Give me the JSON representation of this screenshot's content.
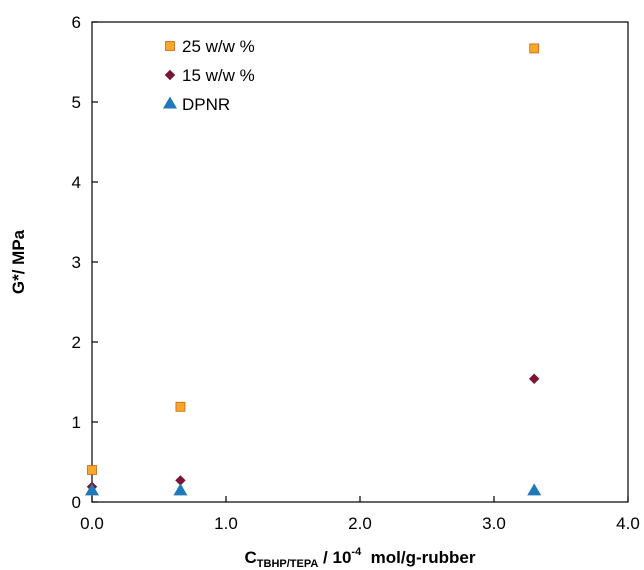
{
  "chart_data": {
    "type": "scatter",
    "xlabel": {
      "main": "C",
      "subscript": "TBHP/TEPA",
      "mid": " / 10",
      "superscript": "-4",
      "tail": "  mol/g-rubber"
    },
    "ylabel": "G*/ MPa",
    "xlim": [
      0,
      4
    ],
    "ylim": [
      0,
      6
    ],
    "x_ticks": [
      "0.0",
      "1.0",
      "2.0",
      "3.0",
      "4.0"
    ],
    "y_ticks": [
      "0",
      "1",
      "2",
      "3",
      "4",
      "5",
      "6"
    ],
    "legend_position": "top-left",
    "grid": false,
    "series": [
      {
        "name": "25 w/w %",
        "marker": "square",
        "color": "#F7A828",
        "points": [
          [
            0.0,
            0.4
          ],
          [
            0.66,
            1.19
          ],
          [
            3.3,
            5.67
          ]
        ]
      },
      {
        "name": "15 w/w %",
        "marker": "diamond",
        "color": "#7B1430",
        "points": [
          [
            0.0,
            0.19
          ],
          [
            0.66,
            0.27
          ],
          [
            3.3,
            1.54
          ]
        ]
      },
      {
        "name": "DPNR",
        "marker": "triangle",
        "color": "#1F78B8",
        "points": [
          [
            0.0,
            0.14
          ],
          [
            0.66,
            0.14
          ],
          [
            3.3,
            0.14
          ]
        ]
      }
    ]
  }
}
